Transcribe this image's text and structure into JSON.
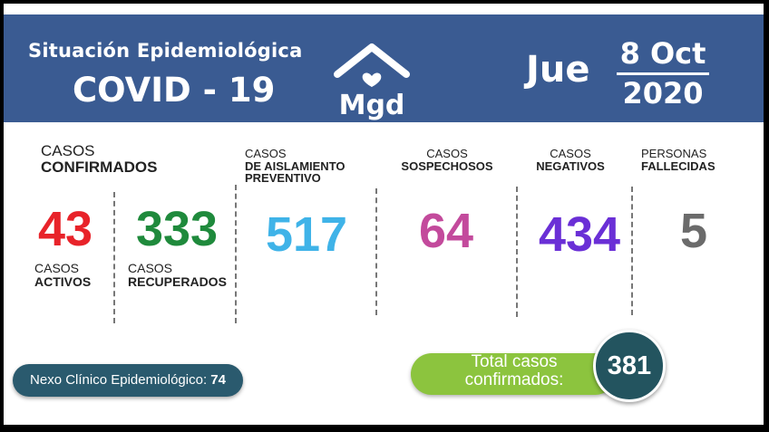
{
  "header": {
    "title_line1": "Situación Epidemiológica",
    "title_line2": "COVID - 19",
    "logo_text": "Mgd",
    "day": "Jue",
    "date_line1": "8 Oct",
    "date_line2": "2020"
  },
  "confirmados": {
    "label_a": "CASOS",
    "label_b": "CONFIRMADOS"
  },
  "activos": {
    "value": "43",
    "label_a": "CASOS",
    "label_b": "ACTIVOS",
    "color": "#e8232a"
  },
  "recuperados": {
    "value": "333",
    "label_a": "CASOS",
    "label_b": "RECUPERADOS",
    "color": "#1f8a3c"
  },
  "aislamiento": {
    "label_a": "CASOS",
    "label_b": "DE AISLAMIENTO",
    "label_c": "PREVENTIVO",
    "value": "517",
    "color": "#3fb3e8"
  },
  "sospechosos": {
    "label_a": "CASOS",
    "label_b": "SOSPECHOSOS",
    "value": "64",
    "color": "#c34a9c"
  },
  "negativos": {
    "label_a": "CASOS",
    "label_b": "NEGATIVOS",
    "value": "434",
    "color": "#6a2fd6"
  },
  "fallecidas": {
    "label_a": "PERSONAS",
    "label_b": "FALLECIDAS",
    "value": "5",
    "color": "#6b6b6b"
  },
  "nexo": {
    "label": "Nexo Clínico Epidemiológico:",
    "value": "74"
  },
  "total": {
    "label_line1": "Total casos",
    "label_line2": "confirmados:",
    "value": "381"
  }
}
